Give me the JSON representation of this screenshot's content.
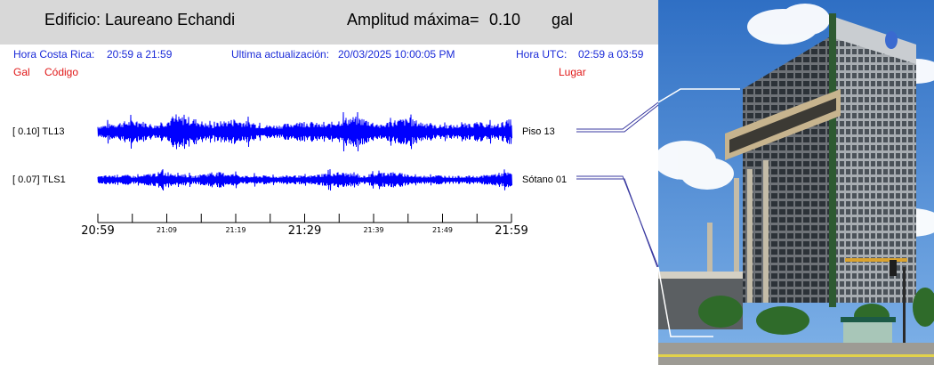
{
  "header": {
    "building": "Edificio: Laureano Echandi",
    "amp_label": "Amplitud máxima=",
    "amp_value": "0.10",
    "amp_unit": "gal"
  },
  "info": {
    "cr_label": "Hora Costa Rica:",
    "cr_range": "20:59 a 21:59",
    "update_label": "Ultima actualización:",
    "update_value": "20/03/2025 10:00:05 PM",
    "utc_label": "Hora UTC:",
    "utc_range": "02:59 a 03:59"
  },
  "columns": {
    "gal": "Gal",
    "code": "Código",
    "place": "Lugar"
  },
  "chart_data": {
    "type": "line",
    "x_ticks": [
      "20:59",
      "21:09",
      "21:19",
      "21:29",
      "21:39",
      "21:49",
      "21:59"
    ],
    "series": [
      {
        "name": "TL13",
        "bracket": "[   0.10] TL13",
        "peak": 0.1,
        "place": "Piso 13",
        "color": "#0000ff"
      },
      {
        "name": "TLS1",
        "bracket": "[   0.07] TLS1",
        "peak": 0.07,
        "place": "Sótano 01",
        "color": "#0000ff"
      }
    ]
  },
  "colors": {
    "trace": "#0000ff",
    "label_blue": "#1a2ad8",
    "label_red": "#e01818",
    "header_bg": "#d8d8d8",
    "connector": "#3a3aa0"
  }
}
